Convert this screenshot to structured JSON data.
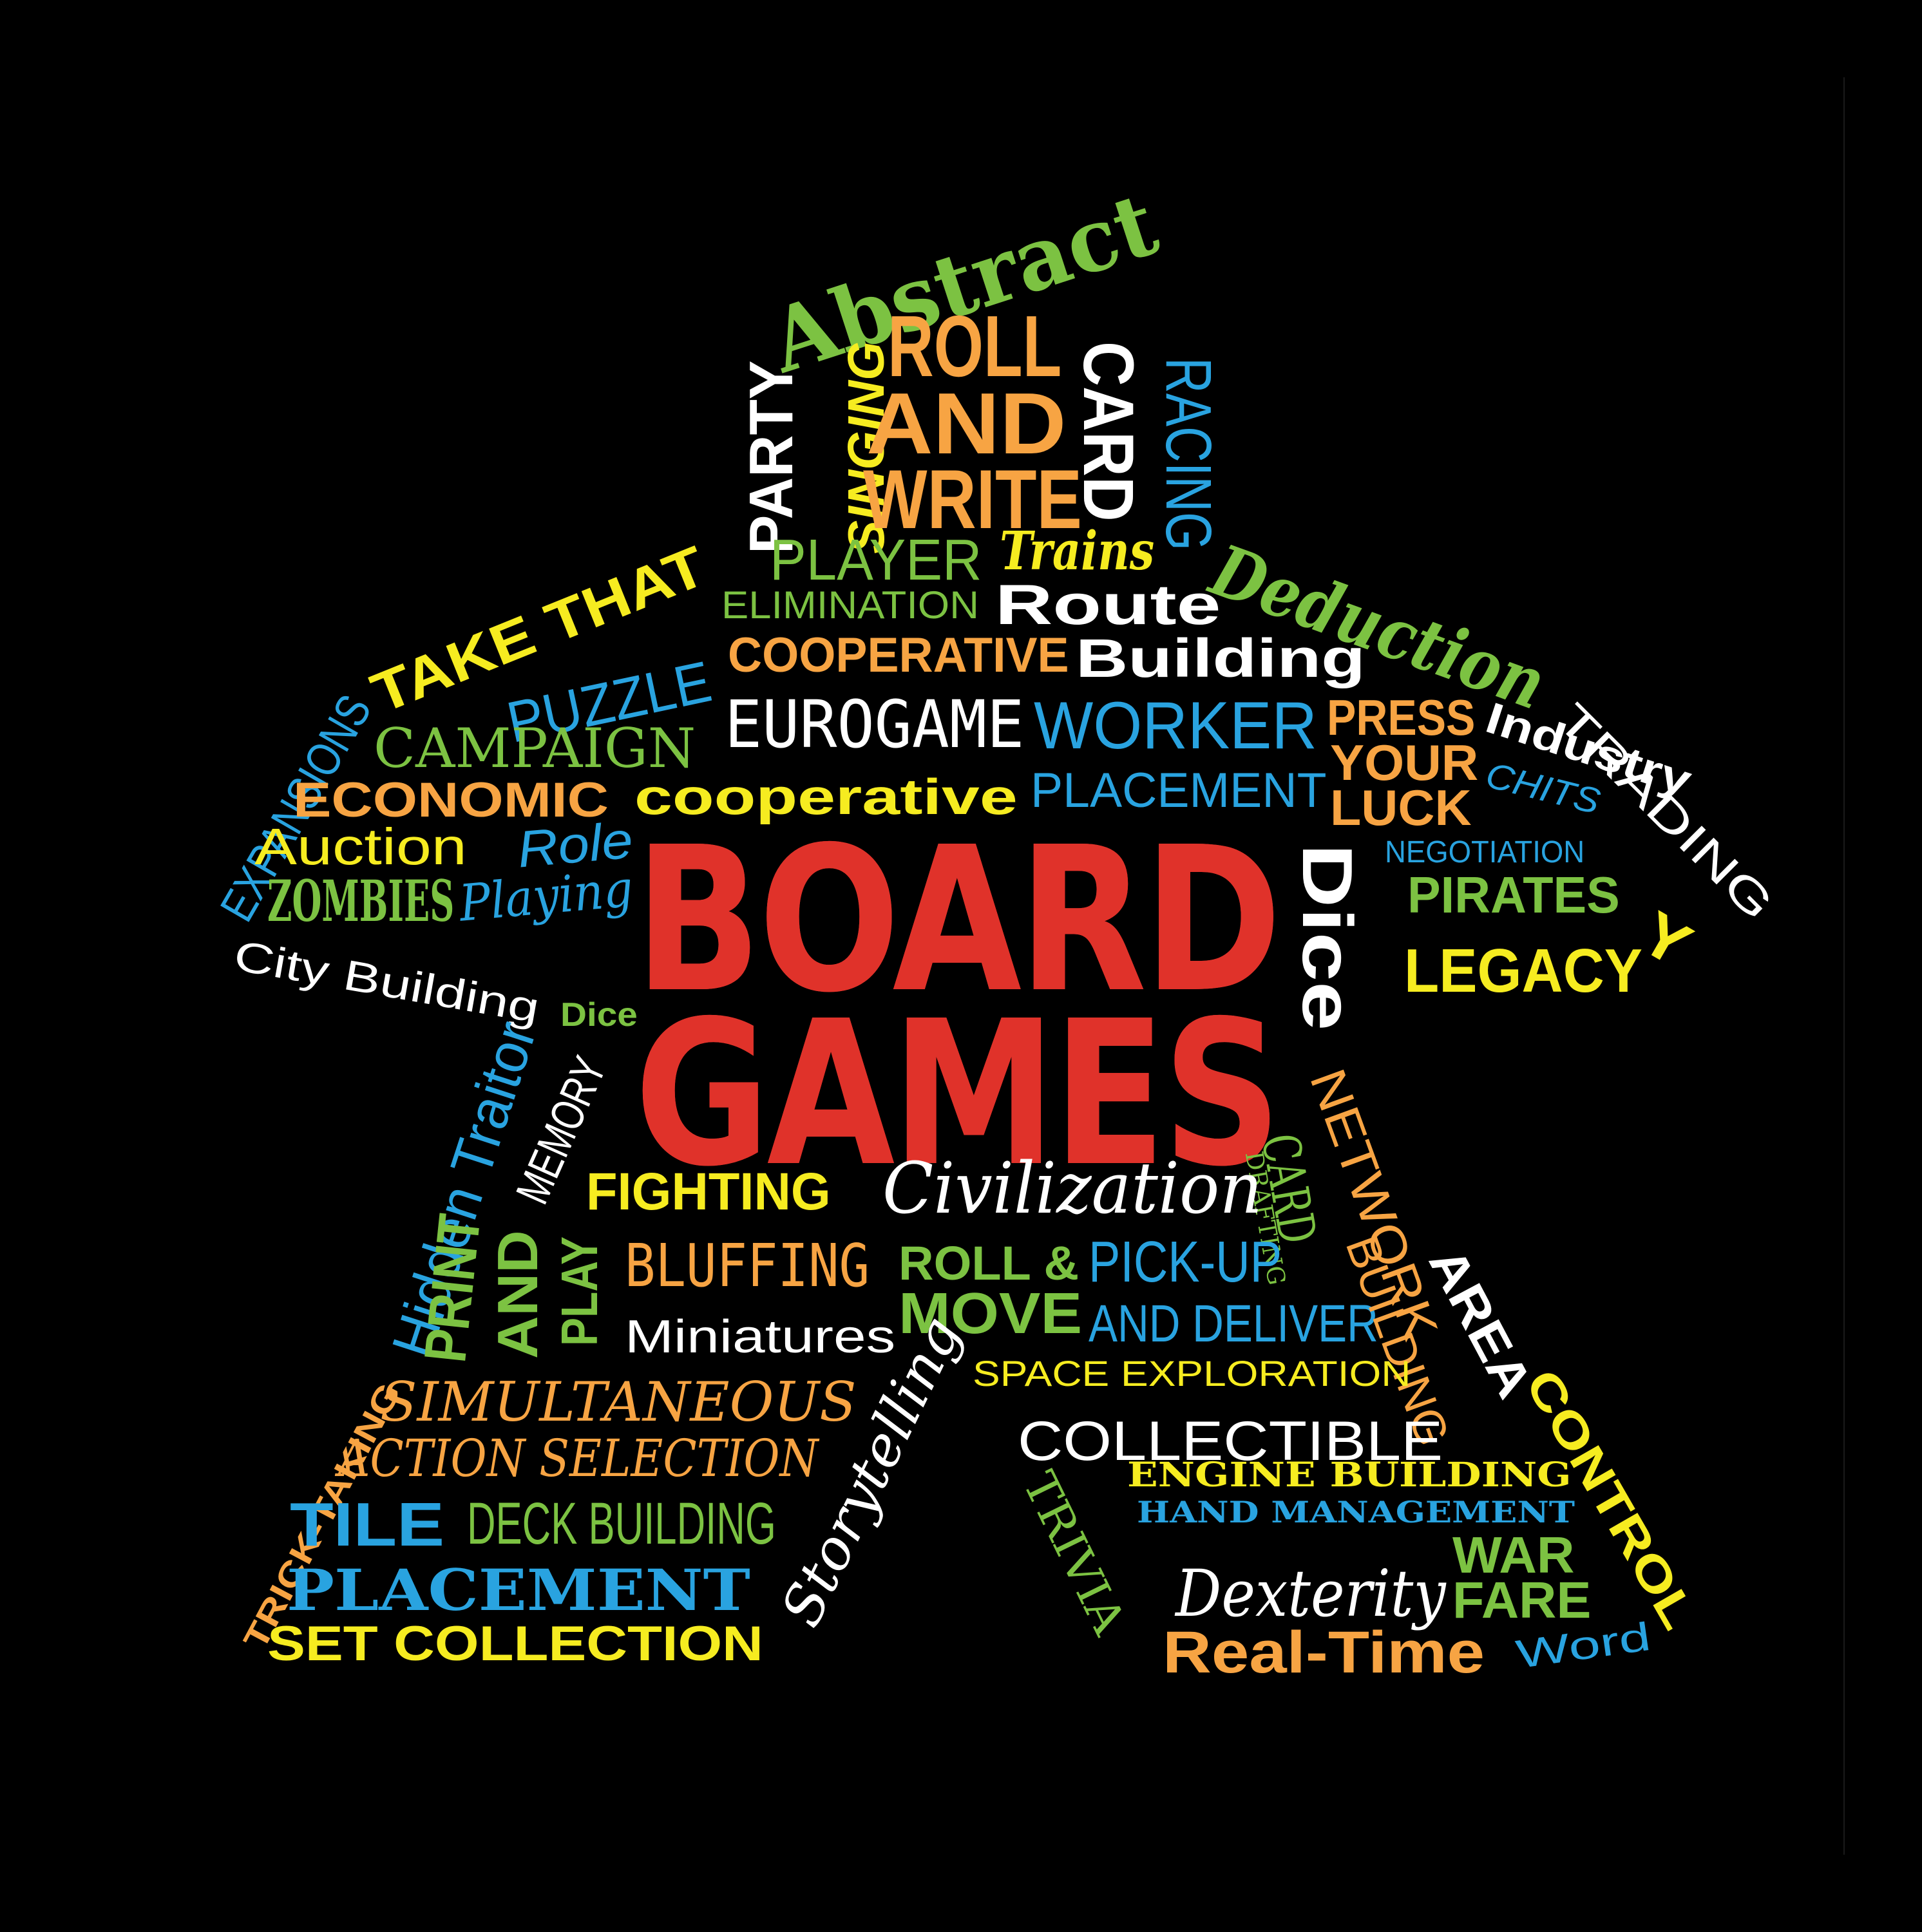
{
  "title": {
    "line1": "BOARD",
    "line2": "GAMES",
    "color": "#e0322a"
  },
  "colors": {
    "green": "#7cc242",
    "orange": "#f7a443",
    "yellow": "#f6ec20",
    "blue": "#29a3e0",
    "white": "#ffffff",
    "red": "#e0322a",
    "background": "#000000"
  },
  "words": [
    {
      "id": "abstract",
      "text": "Abstract",
      "color": "green"
    },
    {
      "id": "party",
      "text": "PARTY",
      "color": "white"
    },
    {
      "id": "singing",
      "text": "SINGING",
      "color": "yellow"
    },
    {
      "id": "roll",
      "text": "ROLL",
      "color": "orange"
    },
    {
      "id": "and",
      "text": "AND",
      "color": "orange"
    },
    {
      "id": "write",
      "text": "WRITE",
      "color": "orange"
    },
    {
      "id": "card",
      "text": "CARD",
      "color": "white"
    },
    {
      "id": "racing",
      "text": "RACING",
      "color": "blue"
    },
    {
      "id": "player",
      "text": "PLAYER",
      "color": "green"
    },
    {
      "id": "trains",
      "text": "Trains",
      "color": "yellow"
    },
    {
      "id": "deduction",
      "text": "Deduction",
      "color": "green"
    },
    {
      "id": "take-that",
      "text": "TAKE THAT",
      "color": "yellow"
    },
    {
      "id": "elimination",
      "text": "ELIMINATION",
      "color": "green"
    },
    {
      "id": "route",
      "text": "Route",
      "color": "white"
    },
    {
      "id": "puzzle",
      "text": "PUZZLE",
      "color": "blue"
    },
    {
      "id": "cooperative-caps",
      "text": "COOPERATIVE",
      "color": "orange"
    },
    {
      "id": "building",
      "text": "Building",
      "color": "white"
    },
    {
      "id": "expansions",
      "text": "EXPANSIONS",
      "color": "blue"
    },
    {
      "id": "campaign",
      "text": "CAMPAIGN",
      "color": "green"
    },
    {
      "id": "eurogame",
      "text": "EUROGAME",
      "color": "white"
    },
    {
      "id": "worker",
      "text": "WORKER",
      "color": "blue"
    },
    {
      "id": "press",
      "text": "PRESS",
      "color": "orange"
    },
    {
      "id": "your",
      "text": "YOUR",
      "color": "orange"
    },
    {
      "id": "luck",
      "text": "LUCK",
      "color": "orange"
    },
    {
      "id": "industry",
      "text": "Industry",
      "color": "white"
    },
    {
      "id": "trading",
      "text": "TRADING",
      "color": "white"
    },
    {
      "id": "economic",
      "text": "ECONOMIC",
      "color": "orange"
    },
    {
      "id": "cooperative-lower",
      "text": "cooperative",
      "color": "yellow"
    },
    {
      "id": "placement-top",
      "text": "PLACEMENT",
      "color": "blue"
    },
    {
      "id": "chits",
      "text": "CHITS",
      "color": "blue"
    },
    {
      "id": "auction",
      "text": "Auction",
      "color": "yellow"
    },
    {
      "id": "role",
      "text": "Role",
      "color": "blue"
    },
    {
      "id": "negotiation",
      "text": "NEGOTIATION",
      "color": "blue"
    },
    {
      "id": "dice-big",
      "text": "Dice",
      "color": "white"
    },
    {
      "id": "zombies",
      "text": "ZOMBIES",
      "color": "green"
    },
    {
      "id": "playing",
      "text": "Playing",
      "color": "blue"
    },
    {
      "id": "pirates",
      "text": "PIRATES",
      "color": "green"
    },
    {
      "id": "y-letter",
      "text": "Y",
      "color": "yellow"
    },
    {
      "id": "legacy",
      "text": "LEGACY",
      "color": "yellow"
    },
    {
      "id": "city-building",
      "text": "City Building",
      "color": "white"
    },
    {
      "id": "dice-small",
      "text": "Dice",
      "color": "green"
    },
    {
      "id": "hidden-traitor",
      "text": "Hidden Traitor",
      "color": "blue"
    },
    {
      "id": "memory",
      "text": "MEMORY",
      "color": "white"
    },
    {
      "id": "network",
      "text": "NETWORK",
      "color": "orange"
    },
    {
      "id": "card-drafting-card",
      "text": "CARD",
      "color": "green"
    },
    {
      "id": "drafting",
      "text": "DRAFTING",
      "color": "green"
    },
    {
      "id": "fighting",
      "text": "FIGHTING",
      "color": "yellow"
    },
    {
      "id": "civilization",
      "text": "Civilization",
      "color": "white"
    },
    {
      "id": "print",
      "text": "PRINT",
      "color": "green"
    },
    {
      "id": "and-print",
      "text": "AND",
      "color": "green"
    },
    {
      "id": "play",
      "text": "PLAY",
      "color": "green"
    },
    {
      "id": "bluffing",
      "text": "BLUFFING",
      "color": "orange"
    },
    {
      "id": "roll-amp",
      "text": "ROLL &",
      "color": "green"
    },
    {
      "id": "move",
      "text": "MOVE",
      "color": "green"
    },
    {
      "id": "pick-up",
      "text": "PICK-UP",
      "color": "blue"
    },
    {
      "id": "and-deliver",
      "text": "AND DELIVER",
      "color": "blue"
    },
    {
      "id": "building-vert",
      "text": "BUILDING",
      "color": "orange"
    },
    {
      "id": "area",
      "text": "AREA",
      "color": "white"
    },
    {
      "id": "miniatures",
      "text": "Miniatures",
      "color": "white"
    },
    {
      "id": "space-exploration",
      "text": "SPACE EXPLORATION",
      "color": "yellow"
    },
    {
      "id": "trick-taking",
      "text": "TRICK-TAKING",
      "color": "orange"
    },
    {
      "id": "simultaneous",
      "text": "SIMULTANEOUS",
      "color": "orange"
    },
    {
      "id": "storytelling",
      "text": "Storytelling",
      "color": "white"
    },
    {
      "id": "collectible",
      "text": "COLLECTIBLE",
      "color": "white"
    },
    {
      "id": "action-selection",
      "text": "ACTION SELECTION",
      "color": "orange"
    },
    {
      "id": "trivia",
      "text": "TRIVIA",
      "color": "green"
    },
    {
      "id": "engine-building",
      "text": "ENGINE BUILDING",
      "color": "yellow"
    },
    {
      "id": "control",
      "text": "CONTROL",
      "color": "yellow"
    },
    {
      "id": "tile",
      "text": "TILE",
      "color": "blue"
    },
    {
      "id": "deck-building",
      "text": "DECK BUILDING",
      "color": "green"
    },
    {
      "id": "hand-management",
      "text": "HAND MANAGEMENT",
      "color": "blue"
    },
    {
      "id": "war",
      "text": "WAR",
      "color": "green"
    },
    {
      "id": "dexterity",
      "text": "Dexterity",
      "color": "white"
    },
    {
      "id": "fare",
      "text": "FARE",
      "color": "green"
    },
    {
      "id": "placement-bottom",
      "text": "PLACEMENT",
      "color": "blue"
    },
    {
      "id": "set-collection",
      "text": "SET COLLECTION",
      "color": "yellow"
    },
    {
      "id": "real-time",
      "text": "Real-Time",
      "color": "orange"
    },
    {
      "id": "word",
      "text": "Word",
      "color": "blue"
    }
  ]
}
